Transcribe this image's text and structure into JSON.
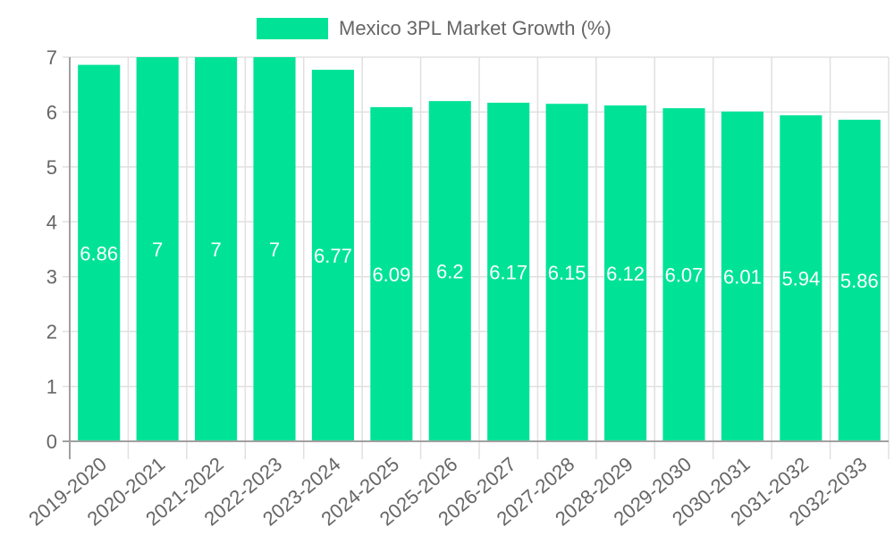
{
  "chart_data": {
    "type": "bar",
    "title": "",
    "legend": [
      {
        "label": "Mexico 3PL Market Growth (%)",
        "color": "#00e396"
      }
    ],
    "legend_position": "top",
    "categories": [
      "2019-2020",
      "2020-2021",
      "2021-2022",
      "2022-2023",
      "2023-2024",
      "2024-2025",
      "2025-2026",
      "2026-2027",
      "2027-2028",
      "2028-2029",
      "2029-2030",
      "2030-2031",
      "2031-2032",
      "2032-2033"
    ],
    "series": [
      {
        "name": "Mexico 3PL Market Growth (%)",
        "values": [
          6.86,
          7,
          7,
          7,
          6.77,
          6.09,
          6.2,
          6.17,
          6.15,
          6.12,
          6.07,
          6.01,
          5.94,
          5.86
        ],
        "color": "#00e396"
      }
    ],
    "data_labels": [
      "6.86",
      "7",
      "7",
      "7",
      "6.77",
      "6.09",
      "6.2",
      "6.17",
      "6.15",
      "6.12",
      "6.07",
      "6.01",
      "5.94",
      "5.86"
    ],
    "xlabel": "",
    "ylabel": "",
    "ylim": [
      0,
      7
    ],
    "yticks": [
      "0",
      "1",
      "2",
      "3",
      "4",
      "5",
      "6",
      "7"
    ],
    "grid": true
  },
  "legend": {
    "label": "Mexico 3PL Market Growth (%)"
  }
}
